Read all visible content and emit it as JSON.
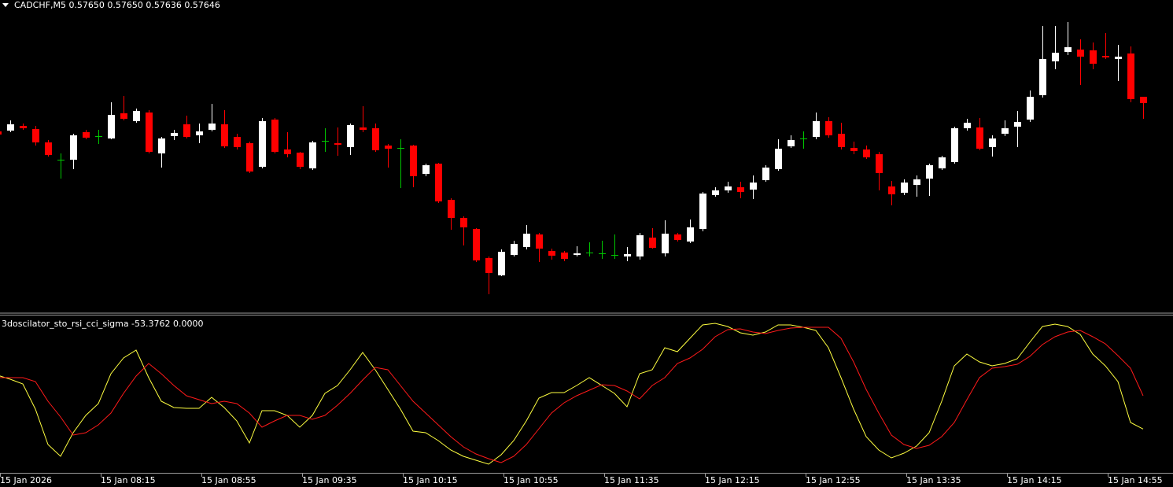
{
  "chart_data": [
    {
      "type": "candlestick",
      "title": "CADCHF,M5  0.57650 0.57650 0.57636 0.57646",
      "categories": [
        "15 Jan 2026",
        null,
        null,
        null,
        null,
        null,
        null,
        null,
        "15 Jan 08:15",
        null,
        null,
        null,
        null,
        null,
        null,
        null,
        "15 Jan 08:55",
        null,
        null,
        null,
        null,
        null,
        null,
        null,
        "15 Jan 09:35",
        null,
        null,
        null,
        null,
        null,
        null,
        null,
        "15 Jan 10:15",
        null,
        null,
        null,
        null,
        null,
        null,
        null,
        "15 Jan 10:55",
        null,
        null,
        null,
        null,
        null,
        null,
        null,
        "15 Jan 11:35",
        null,
        null,
        null,
        null,
        null,
        null,
        null,
        "15 Jan 12:15",
        null,
        null,
        null,
        null,
        null,
        null,
        null,
        "15 Jan 12:55",
        null,
        null,
        null,
        null,
        null,
        null,
        null,
        "15 Jan 13:35",
        null,
        null,
        null,
        null,
        null,
        null,
        null,
        "15 Jan 14:15",
        null,
        null,
        null,
        null,
        null,
        null,
        null,
        "15 Jan 14:55",
        null,
        null,
        null
      ],
      "open": [
        0.57628,
        0.576285,
        0.576315,
        0.576295,
        0.57621,
        0.5761,
        0.5761,
        0.576275,
        0.57625,
        0.576235,
        0.576395,
        0.576345,
        0.5764,
        0.57614,
        0.57625,
        0.576325,
        0.576255,
        0.57629,
        0.576325,
        0.576245,
        0.576205,
        0.576055,
        0.576355,
        0.576165,
        0.576145,
        0.576045,
        0.57622,
        0.576205,
        0.57618,
        0.576305,
        0.5763,
        0.57619,
        0.576175,
        0.57619,
        0.57601,
        0.576075,
        0.575845,
        0.57573,
        0.57566,
        0.575475,
        0.575365,
        0.575495,
        0.575545,
        0.575625,
        0.57552,
        0.57551,
        0.575495,
        0.57551,
        0.575505,
        0.575495,
        0.575485,
        0.575485,
        0.575605,
        0.575505,
        0.575625,
        0.57558,
        0.57566,
        0.575875,
        0.575905,
        0.575925,
        0.57591,
        0.57597,
        0.57604,
        0.576185,
        0.576235,
        0.576245,
        0.576345,
        0.576265,
        0.576175,
        0.576165,
        0.576135,
        0.57593,
        0.57589,
        0.57594,
        0.57598,
        0.576045,
        0.576085,
        0.5763,
        0.576305,
        0.57618,
        0.576265,
        0.57631,
        0.576355,
        0.57651,
        0.576725,
        0.576785,
        0.5768,
        0.576795,
        0.57676,
        0.57674,
        0.576775,
        0.5765
      ],
      "high": [
        0.576295,
        0.57635,
        0.57633,
        0.576315,
        0.576225,
        0.57614,
        0.576265,
        0.57629,
        0.57629,
        0.576465,
        0.576505,
        0.576425,
        0.576415,
        0.576245,
        0.57629,
        0.57638,
        0.57633,
        0.576455,
        0.576415,
        0.576265,
        0.576215,
        0.576365,
        0.576365,
        0.576275,
        0.57615,
        0.57622,
        0.5763,
        0.576305,
        0.57633,
        0.57644,
        0.57633,
        0.5762,
        0.57623,
        0.576195,
        0.576075,
        0.57608,
        0.575855,
        0.57574,
        0.575665,
        0.575485,
        0.57553,
        0.575585,
        0.575685,
        0.575635,
        0.575535,
        0.57552,
        0.57555,
        0.575575,
        0.575585,
        0.575625,
        0.575545,
        0.575635,
        0.575665,
        0.575715,
        0.575635,
        0.57572,
        0.575895,
        0.575925,
        0.57596,
        0.57596,
        0.576,
        0.576065,
        0.57623,
        0.576255,
        0.57628,
        0.5764,
        0.57637,
        0.576335,
        0.576215,
        0.57619,
        0.57615,
        0.575965,
        0.575975,
        0.576,
        0.576075,
        0.576125,
        0.57631,
        0.57636,
        0.576365,
        0.576255,
        0.57635,
        0.57641,
        0.57654,
        0.57695,
        0.57695,
        0.576975,
        0.576865,
        0.576845,
        0.576905,
        0.57683,
        0.57682,
        0.5765
      ],
      "low": [
        0.576255,
        0.576275,
        0.57629,
        0.57619,
        0.57612,
        0.57598,
        0.57604,
        0.57623,
        0.5762,
        0.57623,
        0.57635,
        0.576335,
        0.57614,
        0.57605,
        0.576225,
        0.576235,
        0.576205,
        0.57628,
        0.576175,
        0.576165,
        0.576015,
        0.576045,
        0.57614,
        0.576115,
        0.57604,
        0.576035,
        0.57615,
        0.576125,
        0.57613,
        0.576275,
        0.57615,
        0.57605,
        0.57592,
        0.575925,
        0.575995,
        0.575825,
        0.575655,
        0.575555,
        0.57545,
        0.575245,
        0.57536,
        0.575485,
        0.57553,
        0.57545,
        0.575465,
        0.575455,
        0.575485,
        0.575485,
        0.57547,
        0.57547,
        0.575455,
        0.575465,
        0.575535,
        0.575485,
        0.57558,
        0.57557,
        0.575645,
        0.575865,
        0.57589,
        0.575855,
        0.57585,
        0.57596,
        0.57603,
        0.576175,
        0.57617,
        0.57623,
        0.57624,
        0.576165,
        0.576135,
        0.576105,
        0.575905,
        0.57581,
        0.575875,
        0.575865,
        0.57587,
        0.576035,
        0.576075,
        0.576285,
        0.57616,
        0.57612,
        0.57625,
        0.57618,
        0.57634,
        0.576495,
        0.576675,
        0.576765,
        0.576575,
        0.576675,
        0.57674,
        0.5766,
        0.576465,
        0.57636
      ],
      "close": [
        0.57626,
        0.576325,
        0.5763,
        0.57621,
        0.57613,
        0.5761,
        0.576255,
        0.57624,
        0.57625,
        0.576385,
        0.57636,
        0.57641,
        0.57615,
        0.576235,
        0.57627,
        0.576245,
        0.57628,
        0.57633,
        0.576185,
        0.57618,
        0.576025,
        0.576345,
        0.57615,
        0.576135,
        0.576055,
        0.57621,
        0.57622,
        0.576195,
        0.57632,
        0.57629,
        0.57616,
        0.57617,
        0.576175,
        0.575995,
        0.576065,
        0.575835,
        0.57573,
        0.57567,
        0.57546,
        0.57538,
        0.575515,
        0.575565,
        0.57563,
        0.575535,
        0.57549,
        0.57547,
        0.575505,
        0.57551,
        0.575505,
        0.575495,
        0.5755,
        0.57562,
        0.57554,
        0.57563,
        0.57559,
        0.57567,
        0.575885,
        0.575905,
        0.57593,
        0.575895,
        0.575955,
        0.57605,
        0.57617,
        0.576225,
        0.576235,
        0.576345,
        0.576255,
        0.57618,
        0.576155,
        0.576115,
        0.576015,
        0.57588,
        0.575955,
        0.575975,
        0.576065,
        0.576115,
        0.5763,
        0.576335,
        0.57617,
        0.576235,
        0.5763,
        0.57634,
        0.5765,
        0.57674,
        0.57678,
        0.576815,
        0.576755,
        0.57671,
        0.57675,
        0.576755,
        0.576485,
        0.57646
      ],
      "up_color": "#ffffff",
      "down_color": "#ff0000",
      "doji_color": "#00c800",
      "ylim": [
        0.57513,
        0.577115
      ]
    },
    {
      "type": "line",
      "title": "3dosciIator_sto_rsi_cci_sigma -53.3762 0.0000",
      "series": [
        {
          "color": "#ffff40",
          "values": [
            29.8,
            23.8,
            16.4,
            -22.5,
            -77.4,
            -95.6,
            -59.1,
            -32.3,
            -14.0,
            32.3,
            56.6,
            68.8,
            26.2,
            -10.4,
            -20.1,
            -21.3,
            -21.3,
            -4.3,
            -20.1,
            -40.8,
            -74.9,
            -25.0,
            -25.0,
            -32.3,
            -50.6,
            -32.3,
            1.8,
            14.0,
            38.4,
            65.2,
            38.4,
            7.9,
            -22.5,
            -56.7,
            -59.1,
            -71.3,
            -85.9,
            -95.6,
            -101.7,
            -107.8,
            -93.2,
            -71.3,
            -40.8,
            -5.5,
            3.0,
            3.0,
            14.0,
            26.2,
            14.0,
            1.8,
            -18.9,
            32.3,
            38.4,
            72.5,
            66.4,
            87.1,
            107.8,
            110.3,
            105.4,
            95.6,
            92.0,
            96.9,
            107.8,
            107.8,
            104.2,
            99.3,
            72.5,
            26.2,
            -22.5,
            -65.2,
            -85.9,
            -98.1,
            -90.8,
            -79.8,
            -59.1,
            -10.4,
            44.5,
            62.7,
            50.6,
            44.5,
            48.1,
            55.4,
            81.0,
            105.4,
            109.0,
            105.4,
            93.2,
            62.7,
            44.5,
            20.1,
            -43.3,
            -53.3762
          ]
        },
        {
          "color": "#ff1a1a",
          "values": [
            26.2,
            26.2,
            26.2,
            20.1,
            -10.4,
            -34.7,
            -62.7,
            -59.1,
            -46.9,
            -28.6,
            1.8,
            28.6,
            48.1,
            32.3,
            14.0,
            -1.8,
            -7.9,
            -14.0,
            -10.4,
            -14.0,
            -28.6,
            -50.6,
            -40.8,
            -32.3,
            -32.3,
            -38.4,
            -32.3,
            -16.4,
            1.8,
            22.5,
            42.0,
            38.4,
            14.0,
            -10.4,
            -28.6,
            -46.9,
            -65.2,
            -81.0,
            -92.0,
            -99.3,
            -105.4,
            -95.6,
            -77.4,
            -53.0,
            -28.6,
            -12.8,
            -1.8,
            6.7,
            15.2,
            14.0,
            5.5,
            -6.7,
            14.0,
            26.2,
            48.1,
            56.6,
            70.0,
            89.5,
            100.5,
            101.7,
            96.9,
            94.4,
            99.3,
            102.9,
            104.2,
            104.2,
            104.2,
            87.1,
            50.6,
            7.9,
            -28.6,
            -62.7,
            -77.4,
            -83.5,
            -78.6,
            -65.2,
            -43.3,
            -7.9,
            26.2,
            40.8,
            43.2,
            46.9,
            59.1,
            77.4,
            89.5,
            96.9,
            99.3,
            89.5,
            78.6,
            60.3,
            40.8,
            -1.8
          ]
        }
      ],
      "ylim": [
        -120,
        120
      ]
    }
  ]
}
